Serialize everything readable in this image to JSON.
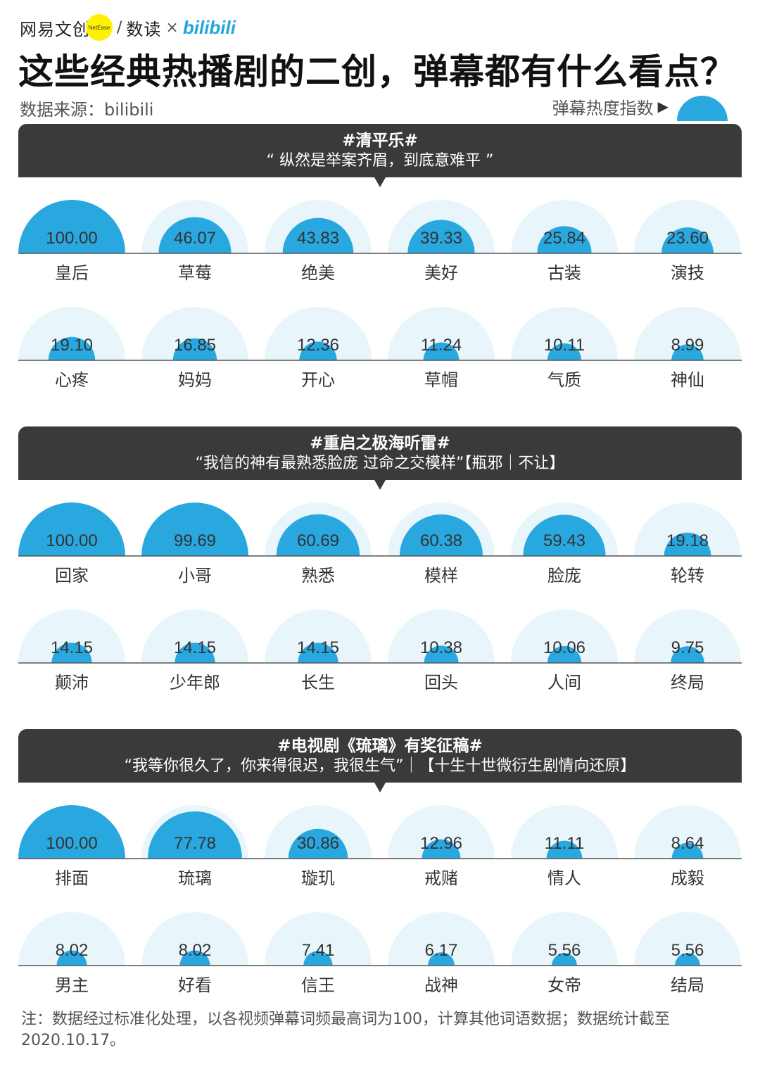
{
  "brand": {
    "netease": "网易文创",
    "netease_badge": "NetEase",
    "slash": "/",
    "shudu": "数读",
    "times": "×",
    "bilibili": "bilibili"
  },
  "title": "这些经典热播剧的二创，弹幕都有什么看点？",
  "source": "数据来源：bilibili",
  "legend": {
    "label": "弹幕热度指数",
    "arrow": "▶"
  },
  "note": "注：数据经过标准化处理，以各视频弹幕词频最高词为100，计算其他词语数据；数据统计截至2020.10.17。",
  "colors": {
    "dome": "#29a8e0",
    "halo": "#e8f6fb",
    "header": "#3a3a3a"
  },
  "chart_data": [
    {
      "type": "bar",
      "title": "#清平乐#",
      "subtitle": "“ 纵然是举案齐眉，到底意难平 ”",
      "ylim": [
        0,
        100
      ],
      "categories": [
        "皇后",
        "草莓",
        "绝美",
        "美好",
        "古装",
        "演技",
        "心疼",
        "妈妈",
        "开心",
        "草帽",
        "气质",
        "神仙"
      ],
      "values": [
        100.0,
        46.07,
        43.83,
        39.33,
        25.84,
        23.6,
        19.1,
        16.85,
        12.36,
        11.24,
        10.11,
        8.99
      ],
      "labels": [
        "100.00",
        "46.07",
        "43.83",
        "39.33",
        "25.84",
        "23.60",
        "19.10",
        "16.85",
        "12.36",
        "11.24",
        "10.11",
        "8.99"
      ]
    },
    {
      "type": "bar",
      "title": "#重启之极海听雷#",
      "subtitle": "“我信的神有最熟悉脸庞 过命之交模样”【瓶邪｜不让】",
      "ylim": [
        0,
        100
      ],
      "categories": [
        "回家",
        "小哥",
        "熟悉",
        "模样",
        "脸庞",
        "轮转",
        "颠沛",
        "少年郎",
        "长生",
        "回头",
        "人间",
        "终局"
      ],
      "values": [
        100.0,
        99.69,
        60.69,
        60.38,
        59.43,
        19.18,
        14.15,
        14.15,
        14.15,
        10.38,
        10.06,
        9.75
      ],
      "labels": [
        "100.00",
        "99.69",
        "60.69",
        "60.38",
        "59.43",
        "19.18",
        "14.15",
        "14.15",
        "14.15",
        "10.38",
        "10.06",
        "9.75"
      ]
    },
    {
      "type": "bar",
      "title": "#电视剧《琉璃》有奖征稿#",
      "subtitle": "“我等你很久了，你来得很迟，我很生气”｜【十生十世微衍生剧情向还原】",
      "ylim": [
        0,
        100
      ],
      "categories": [
        "排面",
        "琉璃",
        "璇玑",
        "戒赌",
        "情人",
        "成毅",
        "男主",
        "好看",
        "信王",
        "战神",
        "女帝",
        "结局"
      ],
      "values": [
        100.0,
        77.78,
        30.86,
        12.96,
        11.11,
        8.64,
        8.02,
        8.02,
        7.41,
        6.17,
        5.56,
        5.56
      ],
      "labels": [
        "100.00",
        "77.78",
        "30.86",
        "12.96",
        "11.11",
        "8.64",
        "8.02",
        "8.02",
        "7.41",
        "6.17",
        "5.56",
        "5.56"
      ]
    }
  ]
}
